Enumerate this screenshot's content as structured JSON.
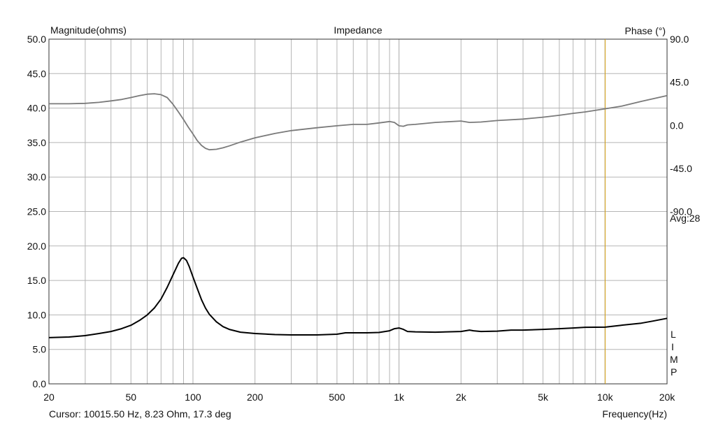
{
  "chart_data": {
    "type": "line",
    "title": "Impedance",
    "ylabel_left": "Magnitude(ohms)",
    "ylabel_right": "Phase (°)",
    "xlabel": "Frequency(Hz)",
    "x_scale": "log",
    "xlim": [
      20,
      20000
    ],
    "ylim_left": [
      0,
      50
    ],
    "ylim_right": [
      -270,
      90
    ],
    "grid": true,
    "x_ticks": [
      {
        "value": 20,
        "label": "20"
      },
      {
        "value": 50,
        "label": "50"
      },
      {
        "value": 100,
        "label": "100"
      },
      {
        "value": 200,
        "label": "200"
      },
      {
        "value": 500,
        "label": "500"
      },
      {
        "value": 1000,
        "label": "1k"
      },
      {
        "value": 2000,
        "label": "2k"
      },
      {
        "value": 5000,
        "label": "5k"
      },
      {
        "value": 10000,
        "label": "10k"
      },
      {
        "value": 20000,
        "label": "20k"
      }
    ],
    "y_ticks_left": [
      "0.0",
      "5.0",
      "10.0",
      "15.0",
      "20.0",
      "25.0",
      "30.0",
      "35.0",
      "40.0",
      "45.0",
      "50.0"
    ],
    "y_ticks_right": [
      {
        "value": 90,
        "label": "90.0"
      },
      {
        "value": 45,
        "label": "45.0"
      },
      {
        "value": 0,
        "label": "0.0"
      },
      {
        "value": -45,
        "label": "-45.0"
      },
      {
        "value": -90,
        "label": "-90.0"
      }
    ],
    "avg_label": "Avg:28",
    "side_label": [
      "L",
      "I",
      "M",
      "P"
    ],
    "cursor_frequency": 10015.5,
    "series": [
      {
        "axis": "left",
        "color": "#000000",
        "points": [
          [
            20,
            6.7
          ],
          [
            25,
            6.8
          ],
          [
            30,
            7.0
          ],
          [
            35,
            7.3
          ],
          [
            40,
            7.6
          ],
          [
            45,
            8.0
          ],
          [
            50,
            8.5
          ],
          [
            55,
            9.2
          ],
          [
            60,
            10.0
          ],
          [
            65,
            11.0
          ],
          [
            70,
            12.3
          ],
          [
            75,
            14.0
          ],
          [
            80,
            15.8
          ],
          [
            85,
            17.5
          ],
          [
            88,
            18.2
          ],
          [
            90,
            18.3
          ],
          [
            93,
            17.9
          ],
          [
            96,
            17.0
          ],
          [
            100,
            15.5
          ],
          [
            105,
            13.8
          ],
          [
            110,
            12.2
          ],
          [
            115,
            11.0
          ],
          [
            120,
            10.1
          ],
          [
            130,
            9.0
          ],
          [
            140,
            8.3
          ],
          [
            150,
            7.9
          ],
          [
            170,
            7.5
          ],
          [
            200,
            7.3
          ],
          [
            250,
            7.15
          ],
          [
            300,
            7.1
          ],
          [
            400,
            7.1
          ],
          [
            500,
            7.2
          ],
          [
            550,
            7.4
          ],
          [
            600,
            7.4
          ],
          [
            700,
            7.4
          ],
          [
            800,
            7.45
          ],
          [
            900,
            7.7
          ],
          [
            950,
            8.0
          ],
          [
            1000,
            8.1
          ],
          [
            1050,
            7.9
          ],
          [
            1100,
            7.6
          ],
          [
            1200,
            7.55
          ],
          [
            1500,
            7.5
          ],
          [
            2000,
            7.6
          ],
          [
            2200,
            7.8
          ],
          [
            2300,
            7.7
          ],
          [
            2500,
            7.6
          ],
          [
            3000,
            7.65
          ],
          [
            3500,
            7.8
          ],
          [
            4000,
            7.8
          ],
          [
            5000,
            7.9
          ],
          [
            6000,
            8.0
          ],
          [
            7000,
            8.1
          ],
          [
            8000,
            8.2
          ],
          [
            10015.5,
            8.23
          ],
          [
            12000,
            8.5
          ],
          [
            15000,
            8.8
          ],
          [
            17000,
            9.1
          ],
          [
            20000,
            9.5
          ]
        ]
      },
      {
        "axis": "right",
        "color": "#7a7a7a",
        "points": [
          [
            20,
            22.5
          ],
          [
            25,
            22.5
          ],
          [
            30,
            23
          ],
          [
            35,
            24
          ],
          [
            40,
            25.5
          ],
          [
            45,
            27
          ],
          [
            50,
            29
          ],
          [
            55,
            31
          ],
          [
            60,
            32.5
          ],
          [
            65,
            33
          ],
          [
            70,
            32
          ],
          [
            75,
            29
          ],
          [
            80,
            22
          ],
          [
            85,
            14
          ],
          [
            90,
            6
          ],
          [
            95,
            -2
          ],
          [
            100,
            -9
          ],
          [
            105,
            -16
          ],
          [
            110,
            -21
          ],
          [
            115,
            -24
          ],
          [
            120,
            -25.5
          ],
          [
            130,
            -25
          ],
          [
            140,
            -23.5
          ],
          [
            150,
            -21.5
          ],
          [
            170,
            -17.5
          ],
          [
            200,
            -13
          ],
          [
            250,
            -8.5
          ],
          [
            300,
            -5.5
          ],
          [
            400,
            -2.5
          ],
          [
            500,
            -0.5
          ],
          [
            600,
            1
          ],
          [
            700,
            1
          ],
          [
            800,
            2.5
          ],
          [
            900,
            4
          ],
          [
            950,
            3
          ],
          [
            1000,
            -0.5
          ],
          [
            1050,
            -1
          ],
          [
            1100,
            0.5
          ],
          [
            1200,
            1
          ],
          [
            1500,
            3
          ],
          [
            2000,
            4.5
          ],
          [
            2200,
            3
          ],
          [
            2500,
            3.5
          ],
          [
            3000,
            5
          ],
          [
            4000,
            6.5
          ],
          [
            5000,
            8.5
          ],
          [
            6000,
            10.5
          ],
          [
            7000,
            12.5
          ],
          [
            8000,
            14
          ],
          [
            10000,
            17.3
          ],
          [
            12000,
            20
          ],
          [
            15000,
            25
          ],
          [
            20000,
            31
          ]
        ]
      }
    ],
    "cursor_readout": "Cursor: 10015.50 Hz, 8.23 Ohm, 17.3 deg",
    "colors": {
      "grid": "#b5b5b5",
      "magnitude": "#000000",
      "phase": "#7a7a7a",
      "cursor": "#d4a017"
    }
  }
}
